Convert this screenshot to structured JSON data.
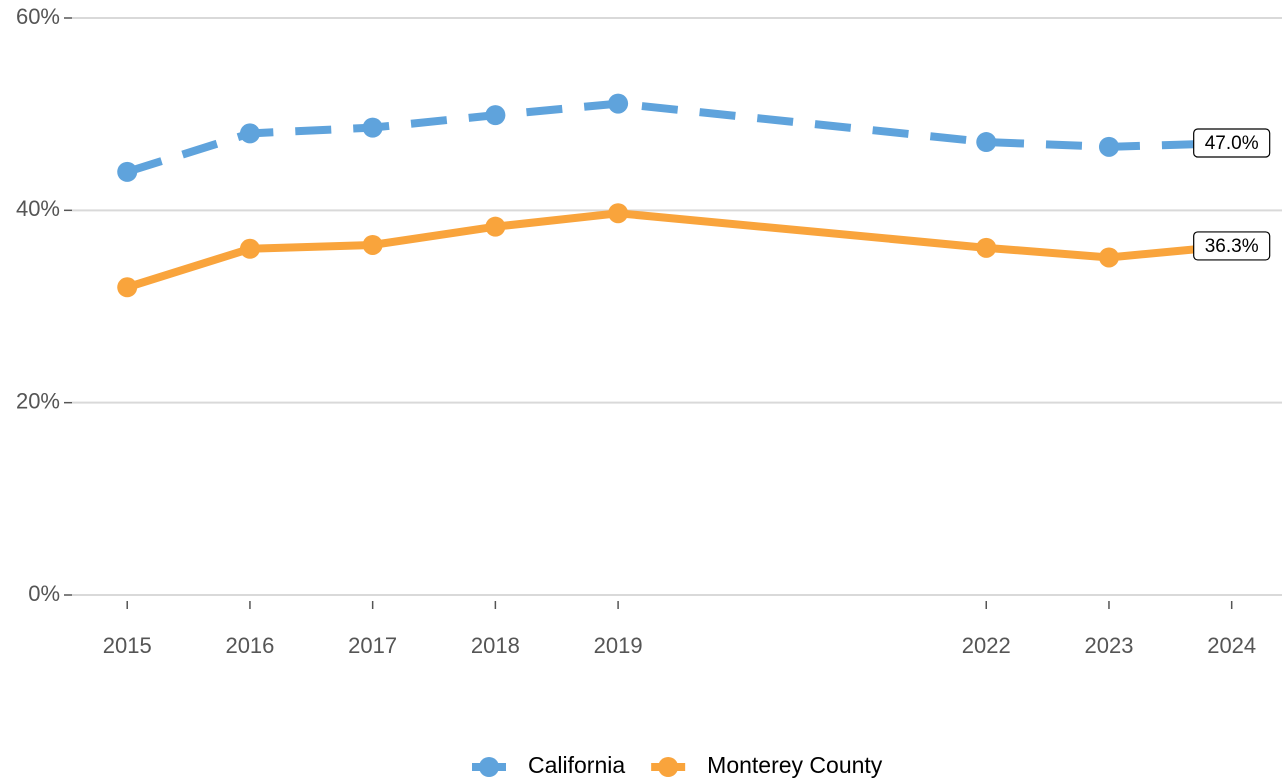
{
  "chart_data": {
    "type": "line",
    "x": [
      2015,
      2016,
      2017,
      2018,
      2019,
      2022,
      2023,
      2024
    ],
    "series": [
      {
        "name": "California",
        "color": "#5fa3dc",
        "dash": true,
        "values": [
          44.0,
          48.0,
          48.6,
          49.9,
          51.1,
          47.1,
          46.6,
          47.0
        ],
        "value_labels": [
          null,
          null,
          null,
          null,
          null,
          null,
          null,
          "47.0%"
        ]
      },
      {
        "name": "Monterey County",
        "color": "#f9a43c",
        "dash": false,
        "values": [
          32.0,
          36.0,
          36.4,
          38.3,
          39.7,
          36.1,
          35.1,
          36.3
        ],
        "value_labels": [
          null,
          null,
          null,
          null,
          null,
          null,
          null,
          "36.3%"
        ]
      }
    ],
    "xlim": [
      2014.55,
      2024.41
    ],
    "xticks": [
      2015,
      2016,
      2017,
      2018,
      2019,
      2022,
      2023,
      2024
    ],
    "ylim": [
      0,
      60
    ],
    "yticks": [
      {
        "value": 0,
        "label": "0%"
      },
      {
        "value": 20,
        "label": "20%"
      },
      {
        "value": 40,
        "label": "40%"
      },
      {
        "value": 60,
        "label": "60%"
      }
    ],
    "grid": true,
    "legend": "bottom"
  }
}
